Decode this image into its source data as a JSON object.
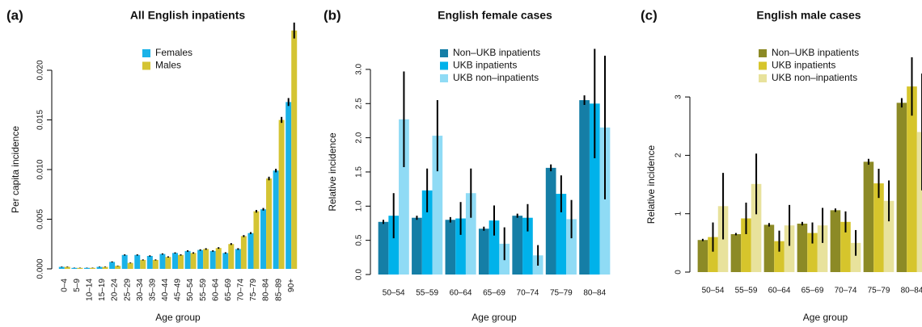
{
  "chart_data": [
    {
      "type": "bar",
      "label": "(a)",
      "title": "All English inpatients",
      "x_label": "Age group",
      "y_label": "Per capita incidence",
      "categories": [
        "0–4",
        "5–9",
        "10–14",
        "15–19",
        "20–24",
        "25–29",
        "30–34",
        "35–39",
        "40–44",
        "45–49",
        "50–54",
        "55–59",
        "60–64",
        "65–69",
        "70–74",
        "75–79",
        "80–84",
        "85–89",
        "90+"
      ],
      "series": [
        {
          "name": "Females",
          "color": "#1ab2e8",
          "values": [
            0.0002,
            0.0001,
            0.0001,
            0.0002,
            0.0007,
            0.0014,
            0.0014,
            0.0013,
            0.0015,
            0.0016,
            0.0018,
            0.0019,
            0.0018,
            0.0016,
            0.002,
            0.0036,
            0.006,
            0.0099,
            0.0168
          ],
          "errors": [
            3e-05,
            2e-05,
            2e-05,
            3e-05,
            5e-05,
            6e-05,
            6e-05,
            6e-05,
            6e-05,
            6e-05,
            7e-05,
            7e-05,
            7e-05,
            7e-05,
            8e-05,
            0.0001,
            0.00013,
            0.00018,
            0.0004
          ]
        },
        {
          "name": "Males",
          "color": "#d4c433",
          "values": [
            0.0002,
            0.0001,
            0.0001,
            0.0002,
            0.0003,
            0.0006,
            0.0009,
            0.0009,
            0.0012,
            0.0014,
            0.0016,
            0.002,
            0.0021,
            0.0025,
            0.0033,
            0.0058,
            0.0091,
            0.015,
            0.024
          ],
          "errors": [
            3e-05,
            2e-05,
            2e-05,
            3e-05,
            3e-05,
            4e-05,
            5e-05,
            5e-05,
            6e-05,
            6e-05,
            7e-05,
            8e-05,
            8e-05,
            9e-05,
            0.0001,
            0.00013,
            0.00018,
            0.0003,
            0.0008
          ]
        }
      ],
      "ylim": [
        0,
        0.0245
      ],
      "yticks": [
        {
          "value": 0,
          "label": "0.000"
        },
        {
          "value": 0.005,
          "label": "0.005"
        },
        {
          "value": 0.01,
          "label": "0.010"
        },
        {
          "value": 0.015,
          "label": "0.015"
        },
        {
          "value": 0.02,
          "label": "0.020"
        }
      ],
      "x_label_rotation": 90
    },
    {
      "type": "bar",
      "label": "(b)",
      "title": "English female cases",
      "x_label": "Age group",
      "y_label": "Relative incidence",
      "categories": [
        "50–54",
        "55–59",
        "60–64",
        "65–69",
        "70–74",
        "75–79",
        "80–84"
      ],
      "series": [
        {
          "name": "Non–UKB inpatients",
          "color": "#157ea6",
          "values": [
            0.77,
            0.83,
            0.8,
            0.67,
            0.86,
            1.56,
            2.55
          ],
          "errors": [
            0.03,
            0.03,
            0.04,
            0.03,
            0.03,
            0.05,
            0.07
          ]
        },
        {
          "name": "UKB inpatients",
          "color": "#00b2ea",
          "values": [
            0.86,
            1.23,
            0.82,
            0.79,
            0.83,
            1.18,
            2.5
          ],
          "errors": [
            0.33,
            0.32,
            0.24,
            0.22,
            0.2,
            0.27,
            0.8
          ]
        },
        {
          "name": "UKB non–inpatients",
          "color": "#8fdbf5",
          "values": [
            2.27,
            2.03,
            1.19,
            0.45,
            0.28,
            0.81,
            2.15
          ],
          "errors": [
            0.7,
            0.52,
            0.36,
            0.24,
            0.15,
            0.28,
            1.05
          ]
        }
      ],
      "ylim": [
        0,
        3.2
      ],
      "yticks": [
        {
          "value": 0,
          "label": "0.0"
        },
        0.5,
        {
          "value": 1,
          "label": "1.0"
        },
        1.5,
        {
          "value": 2,
          "label": "2.0"
        },
        2.5,
        {
          "value": 3,
          "label": "3.0"
        }
      ],
      "x_label_rotation": 0
    },
    {
      "type": "bar",
      "label": "(c)",
      "title": "English male cases",
      "x_label": "Age group",
      "y_label": "Relative incidence",
      "categories": [
        "50–54",
        "55–59",
        "60–64",
        "65–69",
        "70–74",
        "75–79",
        "80–84"
      ],
      "series": [
        {
          "name": "Non–UKB inpatients",
          "color": "#8c8a26",
          "values": [
            0.55,
            0.65,
            0.81,
            0.83,
            1.06,
            1.89,
            2.9
          ],
          "errors": [
            0.02,
            0.02,
            0.03,
            0.03,
            0.03,
            0.05,
            0.08
          ]
        },
        {
          "name": "UKB inpatients",
          "color": "#d6c52c",
          "values": [
            0.6,
            0.92,
            0.53,
            0.67,
            0.86,
            1.52,
            3.18
          ],
          "errors": [
            0.25,
            0.27,
            0.18,
            0.18,
            0.18,
            0.25,
            0.5
          ]
        },
        {
          "name": "UKB non–inpatients",
          "color": "#e8e29c",
          "values": [
            1.13,
            1.51,
            0.8,
            0.8,
            0.5,
            1.22,
            2.4
          ],
          "errors": [
            0.57,
            0.52,
            0.35,
            0.3,
            0.22,
            0.35,
            1.0
          ]
        }
      ],
      "ylim": [
        0,
        3.3
      ],
      "yticks": [
        0,
        1,
        2,
        3
      ],
      "x_label_rotation": 0
    }
  ]
}
